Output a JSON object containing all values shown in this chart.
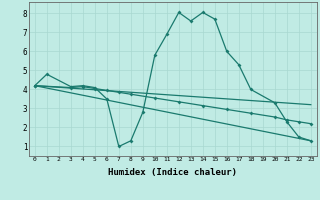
{
  "line1_x": [
    0,
    1,
    3,
    4,
    5,
    6,
    7,
    8,
    9,
    10,
    11,
    12,
    13,
    14,
    15,
    16,
    17,
    18,
    20,
    21,
    22,
    23
  ],
  "line1_y": [
    4.2,
    4.8,
    4.15,
    4.2,
    4.1,
    3.5,
    1.0,
    1.3,
    2.8,
    5.8,
    6.9,
    8.05,
    7.6,
    8.05,
    7.7,
    6.0,
    5.3,
    4.0,
    3.3,
    2.3,
    1.5,
    1.3
  ],
  "line2_x": [
    0,
    3,
    4,
    5,
    6,
    7,
    8,
    10,
    12,
    14,
    16,
    18,
    20,
    21,
    22,
    23
  ],
  "line2_y": [
    4.2,
    4.1,
    4.15,
    4.05,
    3.95,
    3.85,
    3.75,
    3.55,
    3.35,
    3.15,
    2.95,
    2.75,
    2.55,
    2.4,
    2.3,
    2.2
  ],
  "line3_x": [
    0,
    23
  ],
  "line3_y": [
    4.2,
    3.2
  ],
  "line4_x": [
    0,
    23
  ],
  "line4_y": [
    4.2,
    1.3
  ],
  "color": "#1a7a6e",
  "bg_color": "#c0ebe4",
  "grid_color": "#a8d8d0",
  "xlabel": "Humidex (Indice chaleur)",
  "xlim": [
    -0.5,
    23.5
  ],
  "ylim": [
    0.5,
    8.6
  ],
  "yticks": [
    1,
    2,
    3,
    4,
    5,
    6,
    7,
    8
  ],
  "xticks": [
    0,
    1,
    2,
    3,
    4,
    5,
    6,
    7,
    8,
    9,
    10,
    11,
    12,
    13,
    14,
    15,
    16,
    17,
    18,
    19,
    20,
    21,
    22,
    23
  ]
}
